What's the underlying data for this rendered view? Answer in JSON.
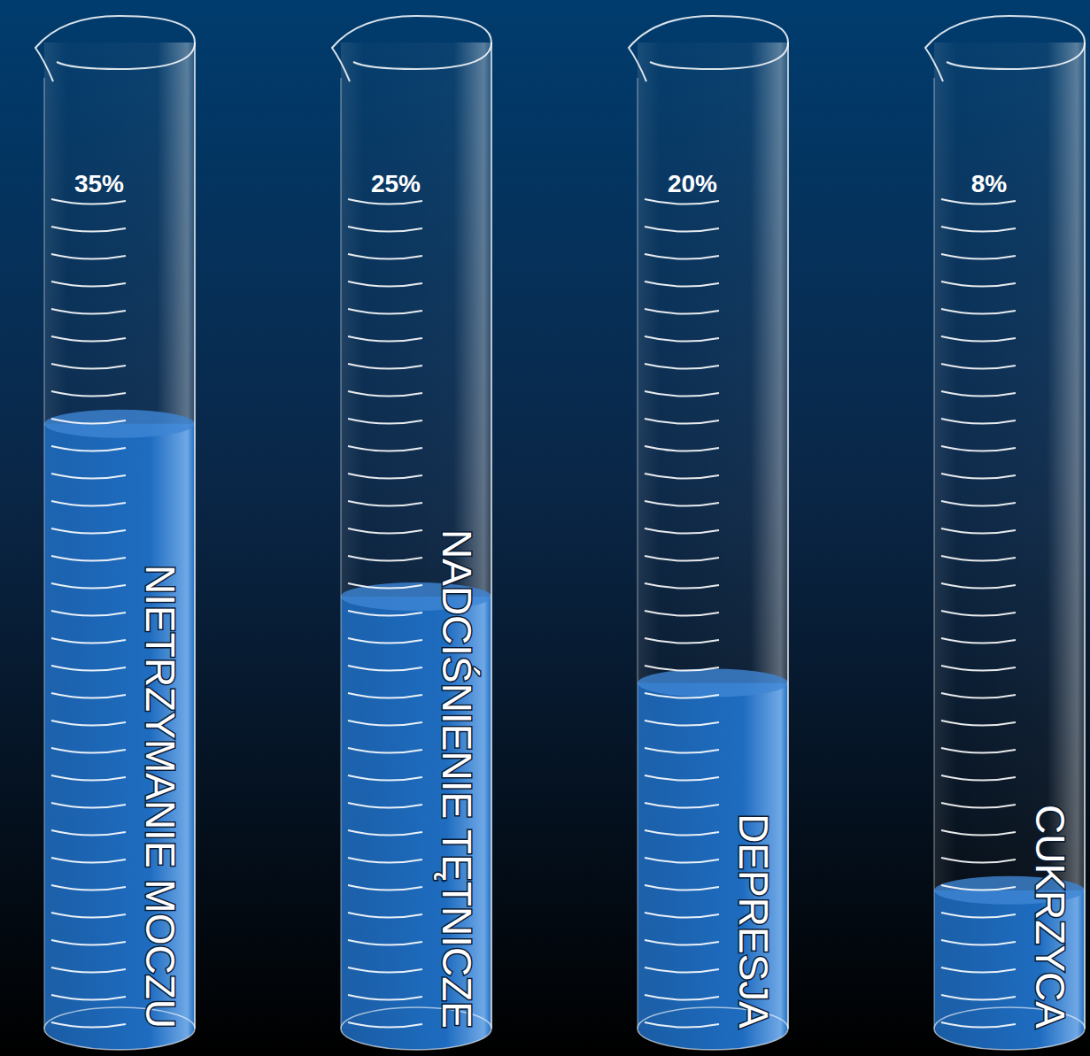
{
  "chart_data": {
    "type": "bar",
    "categories": [
      "NIETRZYMANIE MOCZU",
      "NADCIŚNIENIE TĘTNICZE",
      "DEPRESJA",
      "CUKRZYCA"
    ],
    "values": [
      35,
      25,
      20,
      8
    ],
    "value_labels": [
      "35%",
      "25%",
      "20%",
      "8%"
    ],
    "ylim": [
      0,
      48
    ],
    "data_labels": true,
    "tick_labels": false,
    "color": "#1e6cc0"
  }
}
